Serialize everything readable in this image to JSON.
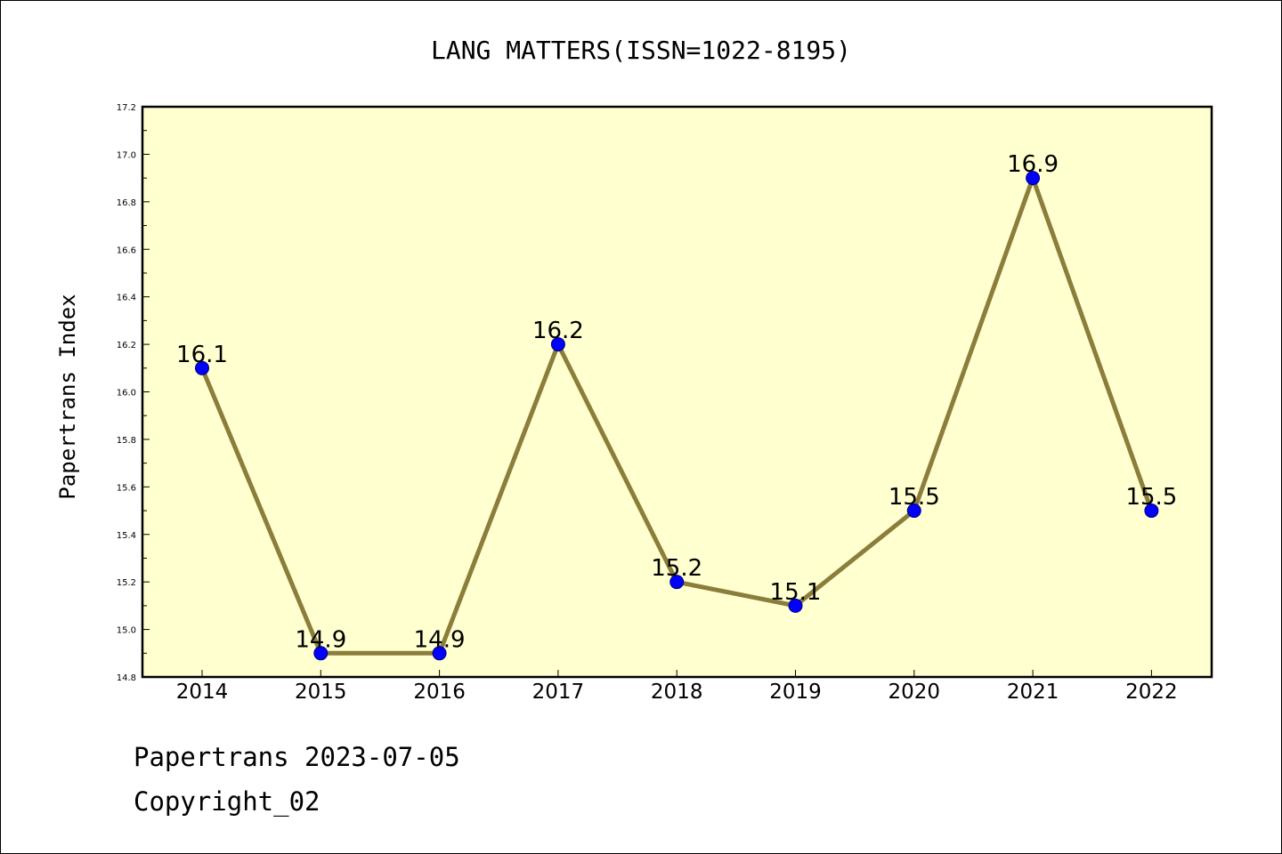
{
  "chart_data": {
    "type": "line",
    "title": "LANG MATTERS(ISSN=1022-8195)",
    "xlabel": "",
    "ylabel": "Papertrans Index",
    "categories": [
      "2014",
      "2015",
      "2016",
      "2017",
      "2018",
      "2019",
      "2020",
      "2021",
      "2022"
    ],
    "series": [
      {
        "values": [
          16.1,
          14.9,
          14.9,
          16.2,
          15.2,
          15.1,
          15.5,
          16.9,
          15.5
        ],
        "labels": [
          "16.1",
          "14.9",
          "14.9",
          "16.2",
          "15.2",
          "15.1",
          "15.5",
          "16.9",
          "15.5"
        ],
        "line_color": "#8b7d3a",
        "marker_color": "#0000ff"
      }
    ],
    "ylim": [
      14.8,
      17.2
    ],
    "yticks": [
      "14.8",
      "15.0",
      "15.2",
      "15.4",
      "15.6",
      "15.8",
      "16.0",
      "16.2",
      "16.4",
      "16.6",
      "16.8",
      "17.0",
      "17.2"
    ],
    "grid": false,
    "legend": "none",
    "plot_background": "#ffffd0"
  },
  "footer": {
    "line1": "Papertrans 2023-07-05",
    "line2": "Copyright_02"
  }
}
